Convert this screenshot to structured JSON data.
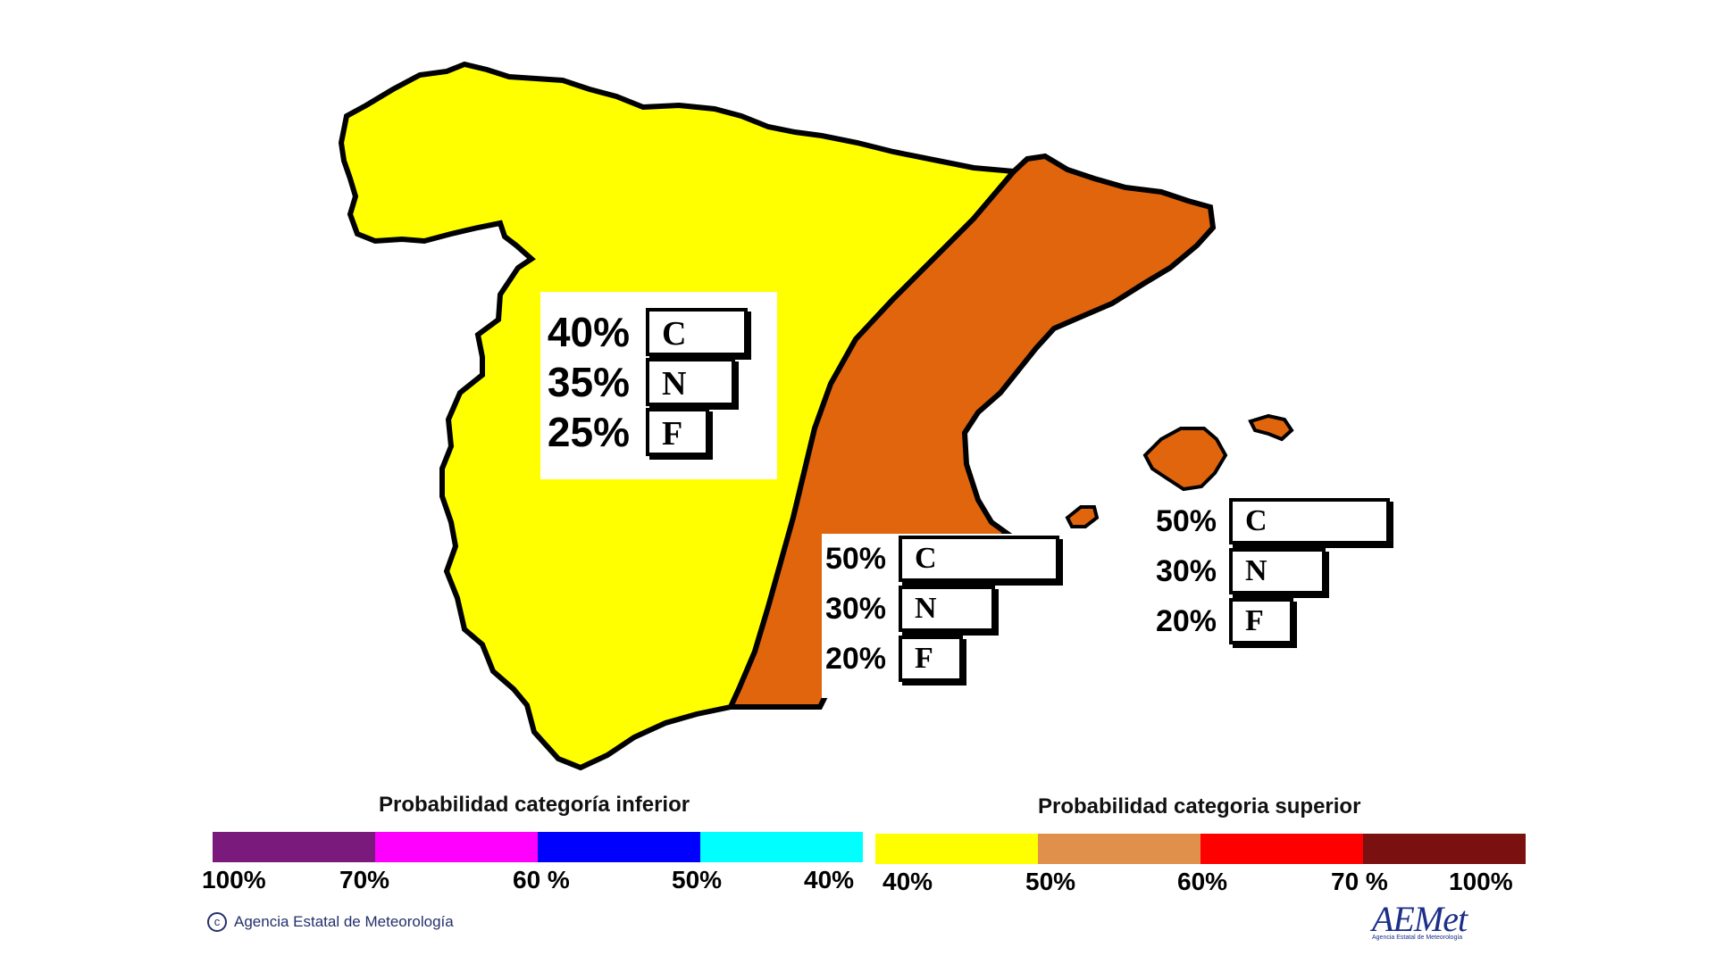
{
  "map": {
    "colors": {
      "west_region": "#ffff00",
      "east_region": "#e0650d",
      "outline": "#000000"
    },
    "regions": [
      {
        "id": "west",
        "fill": "west_region",
        "rows": [
          {
            "percent": "40%",
            "category": "C",
            "value": 0.4
          },
          {
            "percent": "35%",
            "category": "N",
            "value": 0.35
          },
          {
            "percent": "25%",
            "category": "F",
            "value": 0.25
          }
        ]
      },
      {
        "id": "east",
        "fill": "east_region",
        "rows": [
          {
            "percent": "50%",
            "category": "C",
            "value": 0.5
          },
          {
            "percent": "30%",
            "category": "N",
            "value": 0.3
          },
          {
            "percent": "20%",
            "category": "F",
            "value": 0.2
          }
        ]
      },
      {
        "id": "balearic",
        "fill": "east_region",
        "rows": [
          {
            "percent": "50%",
            "category": "C",
            "value": 0.5
          },
          {
            "percent": "30%",
            "category": "N",
            "value": 0.3
          },
          {
            "percent": "20%",
            "category": "F",
            "value": 0.2
          }
        ]
      }
    ]
  },
  "legend": {
    "lower": {
      "title": "Probabilidad categoría inferior",
      "swatches": [
        "#7b1a7d",
        "#ff00ff",
        "#0000ff",
        "#00ffff"
      ],
      "ticks": [
        "100%",
        "70%",
        "60 %",
        "50%",
        "40%"
      ]
    },
    "upper": {
      "title": "Probabilidad categoria superior",
      "swatches": [
        "#ffff00",
        "#e0904a",
        "#ff0000",
        "#7a1010"
      ],
      "ticks": [
        "40%",
        "50%",
        "60%",
        "70 %",
        "100%"
      ]
    }
  },
  "footer": {
    "credit": "Agencia Estatal de Meteorología",
    "credit_icon": "copyright-icon",
    "logo_text": "AEMet",
    "logo_subtext": "Agencia Estatal de Meteorología"
  }
}
